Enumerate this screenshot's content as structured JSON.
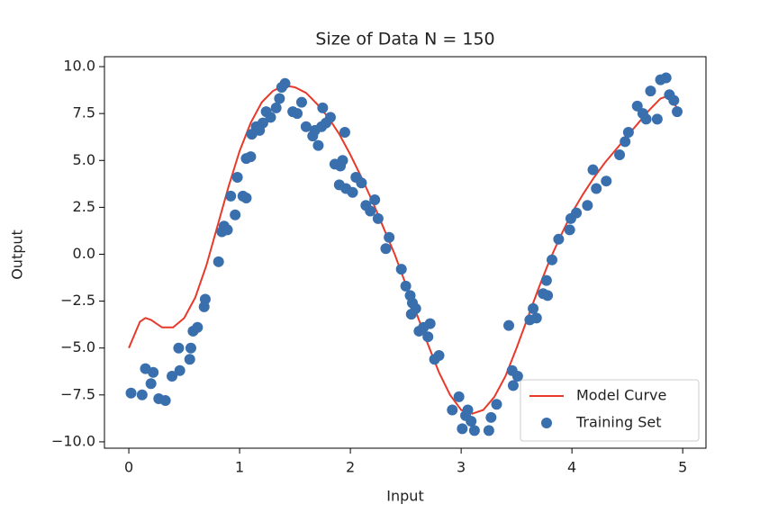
{
  "chart_data": {
    "type": "scatter",
    "title": "Size of Data N = 150",
    "x_label": "Input",
    "y_label": "Output",
    "xlim": [
      -0.22,
      5.21
    ],
    "ylim": [
      -10.34,
      10.53
    ],
    "xticks": [
      0,
      1,
      2,
      3,
      4,
      5
    ],
    "yticks": [
      {
        "value": -10,
        "label": "−10.0"
      },
      {
        "value": -7.5,
        "label": "−7.5"
      },
      {
        "value": -5,
        "label": "−5.0"
      },
      {
        "value": -2.5,
        "label": "−2.5"
      },
      {
        "value": 0,
        "label": "0.0"
      },
      {
        "value": 2.5,
        "label": "2.5"
      },
      {
        "value": 5,
        "label": "5.0"
      },
      {
        "value": 7.5,
        "label": "7.5"
      },
      {
        "value": 10,
        "label": "10.0"
      }
    ],
    "grid": false,
    "legend": "lower right",
    "series": [
      {
        "name": "Model Curve",
        "mark": "line",
        "color": "#e8392b",
        "x": [
          0,
          0.05,
          0.1,
          0.15,
          0.2,
          0.3,
          0.4,
          0.5,
          0.6,
          0.7,
          0.8,
          0.9,
          1.0,
          1.1,
          1.2,
          1.3,
          1.4,
          1.5,
          1.6,
          1.7,
          1.8,
          1.9,
          2.0,
          2.1,
          2.2,
          2.3,
          2.4,
          2.5,
          2.6,
          2.7,
          2.8,
          2.9,
          3.0,
          3.1,
          3.2,
          3.3,
          3.4,
          3.5,
          3.6,
          3.7,
          3.8,
          3.9,
          4.0,
          4.1,
          4.2,
          4.3,
          4.4,
          4.5,
          4.6,
          4.7,
          4.8,
          4.85,
          4.9,
          4.95
        ],
        "values": [
          -5,
          -4.3,
          -3.6,
          -3.4,
          -3.5,
          -3.9,
          -3.9,
          -3.4,
          -2.3,
          -0.6,
          1.5,
          3.6,
          5.5,
          7.0,
          8.1,
          8.7,
          9.0,
          8.9,
          8.6,
          8.0,
          7.3,
          6.4,
          5.3,
          4.1,
          2.8,
          1.4,
          0,
          -1.6,
          -3.2,
          -4.8,
          -6.3,
          -7.5,
          -8.3,
          -8.5,
          -8.3,
          -7.6,
          -6.5,
          -5.0,
          -3.4,
          -1.8,
          -0.3,
          1.0,
          2.2,
          3.2,
          4.1,
          4.9,
          5.6,
          6.3,
          7.0,
          7.7,
          8.3,
          8.4,
          8.2,
          7.8
        ]
      },
      {
        "name": "Training Set",
        "mark": "marker",
        "color": "#3a6fae",
        "x": [
          0.02,
          0.12,
          0.15,
          0.2,
          0.22,
          0.27,
          0.33,
          0.39,
          0.46,
          0.45,
          0.55,
          0.56,
          0.58,
          0.62,
          0.68,
          0.69,
          0.81,
          0.84,
          0.86,
          0.89,
          0.92,
          0.96,
          0.98,
          1.03,
          1.06,
          1.06,
          1.1,
          1.11,
          1.15,
          1.18,
          1.21,
          1.24,
          1.28,
          1.33,
          1.36,
          1.38,
          1.41,
          1.48,
          1.52,
          1.56,
          1.6,
          1.66,
          1.68,
          1.71,
          1.74,
          1.75,
          1.78,
          1.82,
          1.86,
          1.91,
          1.93,
          1.95,
          1.9,
          1.96,
          2.02,
          2.05,
          2.1,
          2.14,
          2.18,
          2.22,
          2.25,
          2.32,
          2.35,
          2.46,
          2.5,
          2.54,
          2.56,
          2.55,
          2.59,
          2.62,
          2.66,
          2.7,
          2.72,
          2.76,
          2.8,
          2.92,
          2.98,
          3.01,
          3.04,
          3.06,
          3.09,
          3.12,
          3.25,
          3.27,
          3.32,
          3.43,
          3.46,
          3.47,
          3.51,
          3.62,
          3.65,
          3.68,
          3.74,
          3.77,
          3.78,
          3.82,
          3.88,
          3.98,
          3.99,
          4.04,
          4.14,
          4.19,
          4.22,
          4.31,
          4.43,
          4.48,
          4.51,
          4.59,
          4.64,
          4.67,
          4.71,
          4.77,
          4.8,
          4.85,
          4.88,
          4.92,
          4.95
        ],
        "values": [
          -7.4,
          -7.5,
          -6.1,
          -6.9,
          -6.3,
          -7.7,
          -7.8,
          -6.5,
          -6.2,
          -5.0,
          -5.6,
          -5.0,
          -4.1,
          -3.9,
          -2.8,
          -2.4,
          -0.4,
          1.2,
          1.5,
          1.3,
          3.1,
          2.1,
          4.1,
          3.1,
          3.0,
          5.1,
          5.2,
          6.4,
          6.8,
          6.6,
          7.0,
          7.6,
          7.3,
          7.8,
          8.3,
          8.9,
          9.1,
          7.6,
          7.5,
          8.1,
          6.8,
          6.3,
          6.6,
          5.8,
          6.8,
          7.8,
          7.0,
          7.3,
          4.8,
          4.7,
          5.0,
          6.5,
          3.7,
          3.5,
          3.3,
          4.1,
          3.8,
          2.6,
          2.3,
          2.9,
          1.9,
          0.3,
          0.9,
          -0.8,
          -1.7,
          -2.2,
          -2.6,
          -3.2,
          -2.9,
          -4.1,
          -3.9,
          -4.4,
          -3.7,
          -5.6,
          -5.4,
          -8.3,
          -7.6,
          -9.3,
          -8.6,
          -8.3,
          -8.9,
          -9.4,
          -9.4,
          -8.7,
          -8.0,
          -3.8,
          -6.2,
          -7.0,
          -6.5,
          -3.5,
          -2.9,
          -3.4,
          -2.1,
          -1.4,
          -2.2,
          -0.3,
          0.8,
          1.3,
          1.9,
          2.2,
          2.6,
          4.5,
          3.5,
          3.9,
          5.3,
          6.0,
          6.5,
          7.9,
          7.5,
          7.2,
          8.7,
          7.2,
          9.3,
          9.4,
          8.5,
          8.2,
          7.6
        ]
      }
    ]
  }
}
